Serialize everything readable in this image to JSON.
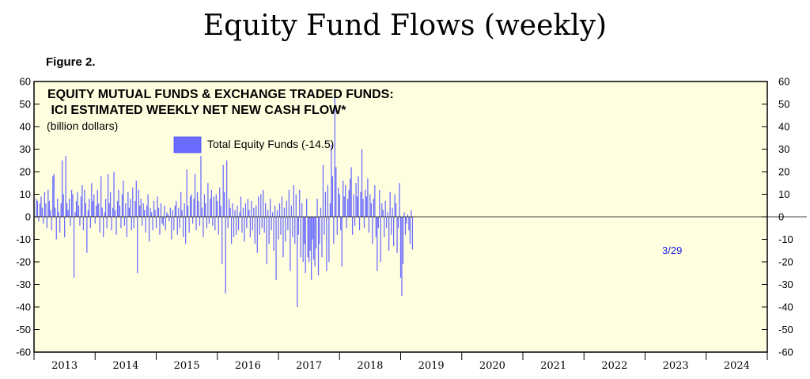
{
  "page_title": "Equity Fund Flows (weekly)",
  "figure_label": "Figure 2.",
  "chart_data": {
    "type": "bar",
    "title_line1": "EQUITY MUTUAL FUNDS & EXCHANGE TRADED FUNDS:",
    "title_line2": " ICI ESTIMATED WEEKLY NET NEW CASH FLOW*",
    "units": "(billion dollars)",
    "legend_label": "Total Equity Funds (-14.5)",
    "annotation": "3/29",
    "ylim": [
      -60,
      60
    ],
    "yticks": [
      60,
      50,
      40,
      30,
      20,
      10,
      0,
      -10,
      -20,
      -30,
      -40,
      -50,
      -60
    ],
    "x_years": [
      "2013",
      "2014",
      "2015",
      "2016",
      "2017",
      "2018",
      "2019",
      "2020",
      "2021",
      "2022",
      "2023",
      "2024"
    ],
    "x_range": [
      2013,
      2025
    ],
    "grid": false,
    "legend_position": "top-left",
    "colors": {
      "bar": "#6b6bff",
      "background": "#ffffe0",
      "annotation": "#1a1ae6"
    },
    "series": [
      {
        "start": 2013.0,
        "step": 0.01923,
        "values": [
          8,
          7,
          -2,
          6,
          9,
          4,
          -3,
          11,
          6,
          -5,
          12,
          7,
          3,
          -6,
          18,
          19,
          4,
          -10,
          8,
          2,
          -7,
          6,
          25,
          10,
          -9,
          27,
          6,
          3,
          8,
          -4,
          12,
          10,
          -27,
          2,
          7,
          11,
          5,
          -4,
          9,
          14,
          -6,
          12,
          6,
          -16,
          3,
          8,
          -5,
          15,
          7,
          10,
          -3,
          5,
          12,
          6,
          -7,
          18,
          4,
          -9,
          2,
          8,
          -5,
          19,
          6,
          11,
          -6,
          4,
          20,
          3,
          -8,
          7,
          12,
          5,
          -5,
          10,
          16,
          -4,
          6,
          -9,
          11,
          4,
          8,
          -6,
          13,
          -5,
          7,
          16,
          -25,
          12,
          5,
          8,
          -4,
          6,
          3,
          -7,
          5,
          10,
          -11,
          4,
          2,
          -6,
          7,
          3,
          -5,
          9,
          4,
          -8,
          6,
          -3,
          -4,
          5,
          -6,
          2,
          1,
          -2,
          4,
          -10,
          3,
          -6,
          5,
          7,
          -8,
          4,
          -5,
          11,
          3,
          -9,
          6,
          -12,
          21,
          5,
          -7,
          9,
          10,
          -3,
          8,
          19,
          -6,
          11,
          7,
          -4,
          27,
          4,
          -9,
          10,
          6,
          -5,
          15,
          -3,
          8,
          12,
          -4,
          9,
          -6,
          10,
          7,
          -8,
          13,
          5,
          -21,
          23,
          11,
          -34,
          25,
          -5,
          8,
          4,
          -12,
          6,
          -9,
          3,
          -8,
          5,
          -6,
          2,
          9,
          -7,
          4,
          -11,
          6,
          -5,
          8,
          3,
          -9,
          7,
          -6,
          4,
          -12,
          5,
          -16,
          9,
          -8,
          10,
          -5,
          12,
          -7,
          6,
          -21,
          3,
          -12,
          8,
          -6,
          2,
          -15,
          5,
          -28,
          3,
          -10,
          6,
          -8,
          9,
          -18,
          4,
          -11,
          7,
          -6,
          12,
          -24,
          5,
          -9,
          14,
          -12,
          10,
          -40,
          -8,
          12,
          -18,
          6,
          -20,
          -12,
          -25,
          8,
          -18,
          -20,
          -15,
          -28,
          -10,
          -19,
          -22,
          -14,
          8,
          -26,
          -12,
          4,
          -18,
          23,
          -8,
          11,
          -24,
          14,
          -20,
          6,
          32,
          18,
          -12,
          54,
          22,
          -8,
          13,
          10,
          -6,
          -22,
          16,
          9,
          14,
          -5,
          8,
          12,
          17,
          22,
          -8,
          10,
          -4,
          15,
          9,
          18,
          -6,
          11,
          30,
          8,
          -5,
          12,
          9,
          17,
          -7,
          10,
          6,
          -12,
          8,
          14,
          -9,
          -24,
          -5,
          12,
          -20,
          6,
          3,
          -9,
          7,
          -5,
          2,
          -15,
          11,
          -8,
          4,
          -13,
          10,
          6,
          -16,
          -5,
          15,
          -27,
          -35,
          -21,
          2,
          -8,
          -3,
          1,
          -6,
          -12,
          3,
          -14.5
        ]
      }
    ]
  }
}
